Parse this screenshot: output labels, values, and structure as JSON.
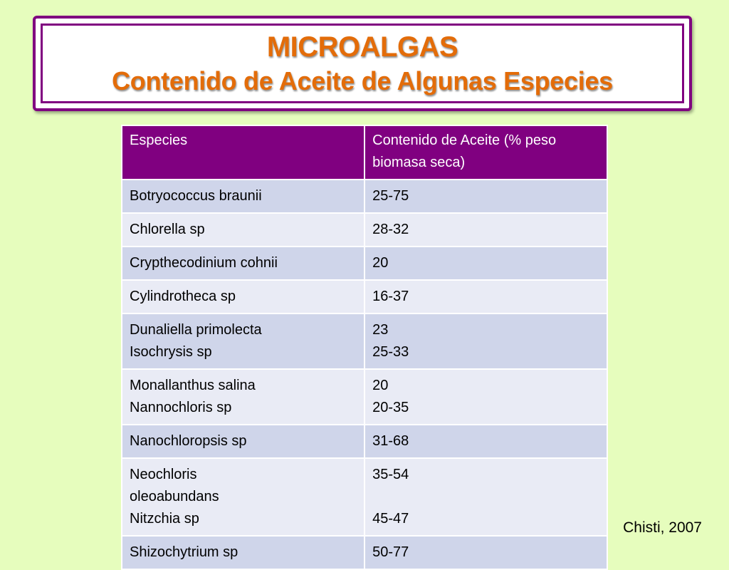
{
  "title": {
    "line1": "MICROALGAS",
    "line2": "Contenido de Aceite de Algunas Especies"
  },
  "table": {
    "headers": [
      "Especies",
      "Contenido de Aceite (% peso biomasa seca)"
    ],
    "rows": [
      {
        "species": [
          "Botryococcus braunii"
        ],
        "oil": [
          "25-75"
        ]
      },
      {
        "species": [
          "Chlorella sp"
        ],
        "oil": [
          "28-32"
        ]
      },
      {
        "species": [
          "Crypthecodinium cohnii"
        ],
        "oil": [
          "20"
        ]
      },
      {
        "species": [
          "Cylindrotheca sp"
        ],
        "oil": [
          "16-37"
        ]
      },
      {
        "species": [
          "Dunaliella primolecta",
          "Isochrysis sp"
        ],
        "oil": [
          "23",
          "25-33"
        ]
      },
      {
        "species": [
          "Monallanthus salina",
          "Nannochloris sp"
        ],
        "oil": [
          "20",
          "20-35"
        ]
      },
      {
        "species": [
          "Nanochloropsis sp"
        ],
        "oil": [
          "31-68"
        ]
      },
      {
        "species": [
          "Neochloris",
          "oleoabundans",
          "Nitzchia sp"
        ],
        "oil": [
          "35-54",
          "",
          "45-47"
        ]
      },
      {
        "species": [
          "Shizochytrium sp"
        ],
        "oil": [
          "50-77"
        ]
      }
    ]
  },
  "citation": "Chisti, 2007",
  "colors": {
    "background": "#e6fdbd",
    "accent_purple": "#800080",
    "title_orange": "#e36c09",
    "row_dark": "#cfd5ea",
    "row_light": "#e9ebf5"
  }
}
